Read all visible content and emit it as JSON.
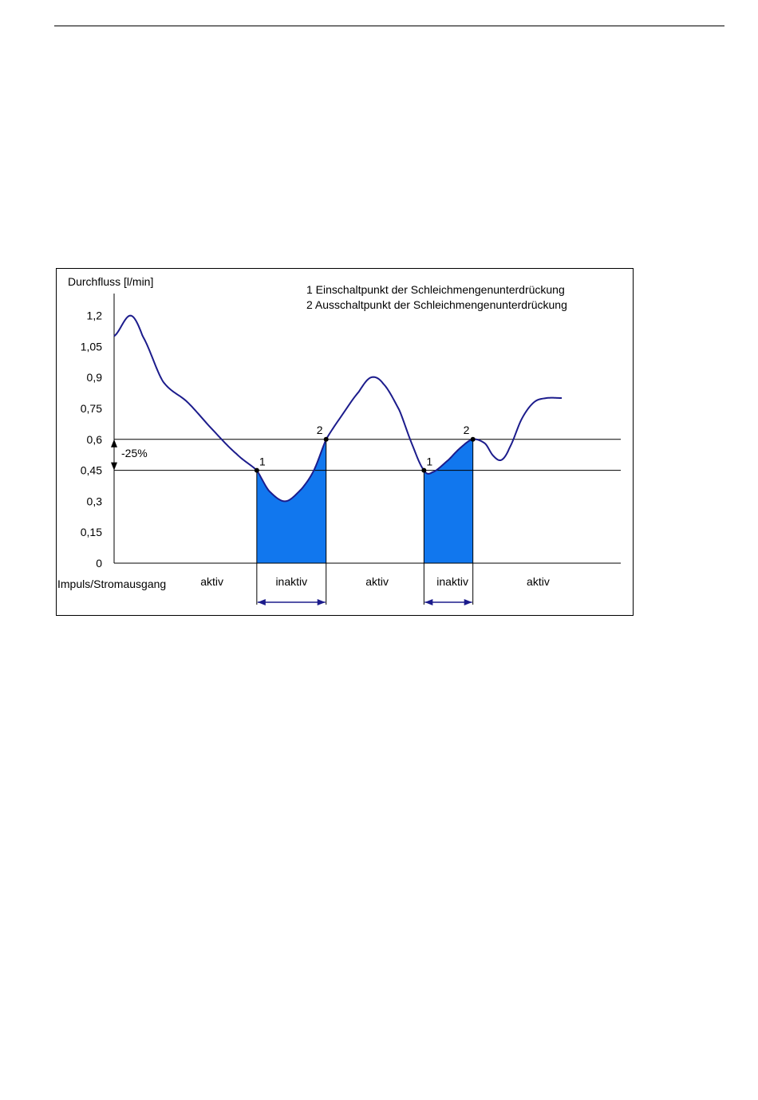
{
  "chart_data": {
    "type": "line",
    "ylabel": "Durchfluss [l/min]",
    "xlabel": "Impuls/Stromausgang",
    "yticks": [
      "0",
      "0,15",
      "0,3",
      "0,45",
      "0,6",
      "0,75",
      "0,9",
      "1,05",
      "1,2"
    ],
    "ytick_values": [
      0,
      0.15,
      0.3,
      0.45,
      0.6,
      0.75,
      0.9,
      1.05,
      1.2
    ],
    "ylim": [
      0,
      1.3
    ],
    "legend": [
      "1 Einschaltpunkt der Schleichmengenunterdrückung",
      "2 Ausschaltpunkt der Schleichmengenunterdrückung"
    ],
    "thresholds": [
      {
        "value": 0.6,
        "note": "switch-off"
      },
      {
        "value": 0.45,
        "note": "switch-on"
      }
    ],
    "hysteresis_label": "-25%",
    "series": [
      {
        "color": "#1c1c8c",
        "points": [
          [
            0.0,
            1.1
          ],
          [
            0.04,
            1.2
          ],
          [
            0.07,
            1.1
          ],
          [
            0.12,
            0.88
          ],
          [
            0.18,
            0.78
          ],
          [
            0.24,
            0.65
          ],
          [
            0.3,
            0.53
          ],
          [
            0.35,
            0.45
          ],
          [
            0.38,
            0.35
          ],
          [
            0.42,
            0.3
          ],
          [
            0.46,
            0.36
          ],
          [
            0.49,
            0.45
          ],
          [
            0.52,
            0.6
          ],
          [
            0.56,
            0.72
          ],
          [
            0.6,
            0.83
          ],
          [
            0.63,
            0.9
          ],
          [
            0.66,
            0.87
          ],
          [
            0.7,
            0.74
          ],
          [
            0.73,
            0.58
          ],
          [
            0.76,
            0.45
          ],
          [
            0.78,
            0.44
          ],
          [
            0.82,
            0.5
          ],
          [
            0.85,
            0.56
          ],
          [
            0.88,
            0.6
          ],
          [
            0.91,
            0.58
          ],
          [
            0.93,
            0.52
          ],
          [
            0.95,
            0.5
          ],
          [
            0.97,
            0.56
          ],
          [
            1.0,
            0.7
          ],
          [
            1.03,
            0.78
          ],
          [
            1.06,
            0.8
          ],
          [
            1.1,
            0.8
          ]
        ]
      }
    ],
    "markers": [
      {
        "label": "1",
        "x": 0.35,
        "y": 0.45
      },
      {
        "label": "2",
        "x": 0.52,
        "y": 0.6
      },
      {
        "label": "1",
        "x": 0.76,
        "y": 0.45
      },
      {
        "label": "2",
        "x": 0.88,
        "y": 0.6
      }
    ],
    "inactive_regions": [
      {
        "x_start": 0.35,
        "x_end": 0.52,
        "color": "#1177ee"
      },
      {
        "x_start": 0.76,
        "x_end": 0.88,
        "color": "#1177ee"
      }
    ],
    "state_labels": [
      {
        "text": "aktiv",
        "x": 0.24
      },
      {
        "text": "inaktiv",
        "x": 0.435
      },
      {
        "text": "aktiv",
        "x": 0.645
      },
      {
        "text": "inaktiv",
        "x": 0.83
      },
      {
        "text": "aktiv",
        "x": 1.04
      }
    ]
  }
}
